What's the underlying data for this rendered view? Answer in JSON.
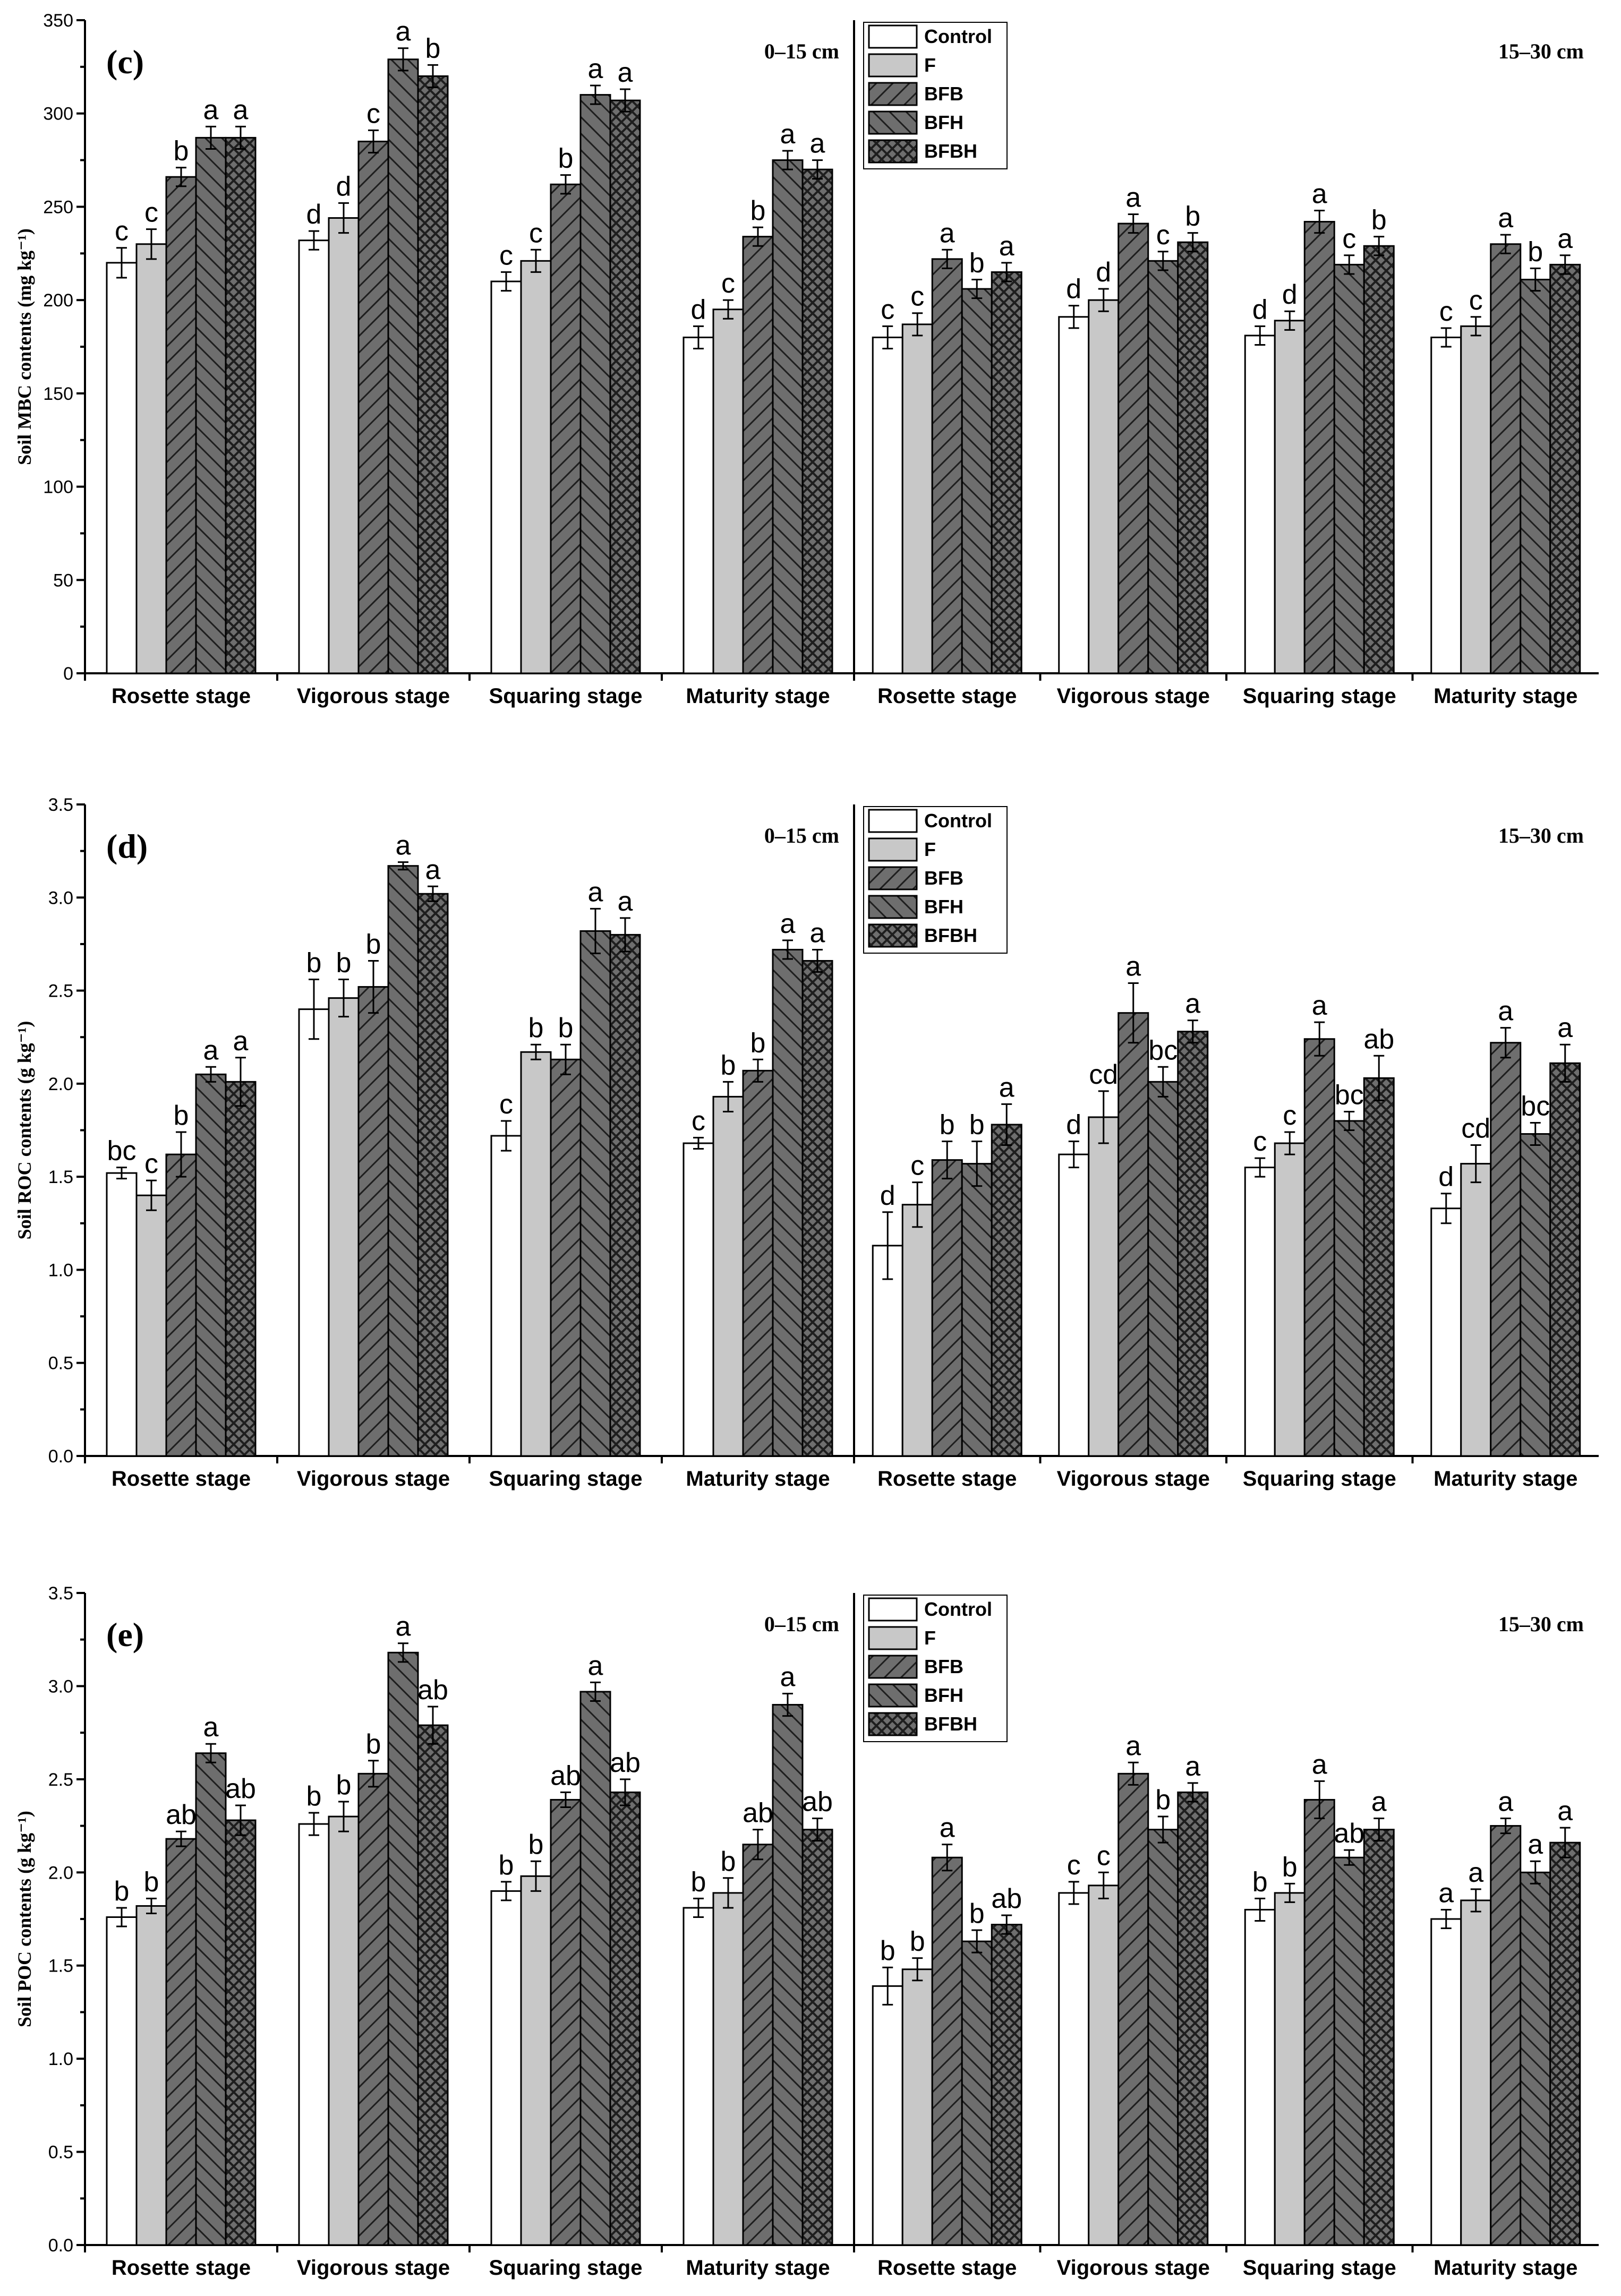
{
  "colors": {
    "control": "#ffffff",
    "f": "#c8c8c8",
    "hatched_bg": "#6e6e6e",
    "hatch_line": "#1e1e1e",
    "axis": "#000000"
  },
  "chart_data": [
    {
      "type": "bar",
      "panel_label": "(c)",
      "ylabel": "Soil MBC contents (mg kg⁻¹)",
      "ylim": [
        0,
        350
      ],
      "yticks": [
        0,
        50,
        100,
        150,
        200,
        250,
        300,
        350
      ],
      "ytick_labels": [
        "0",
        "50",
        "100",
        "150",
        "200",
        "250",
        "300",
        "350"
      ],
      "legend": [
        "Control",
        "F",
        "BFB",
        "BFH",
        "BFBH"
      ],
      "legend_position": "top-center",
      "depths": [
        {
          "label": "0–15 cm",
          "categories": [
            "Rosette stage",
            "Vigorous stage",
            "Squaring stage",
            "Maturity stage"
          ],
          "series": [
            {
              "name": "Control",
              "values": [
                220,
                232,
                210,
                180
              ],
              "errors": [
                8,
                5,
                5,
                6
              ],
              "letters": [
                "c",
                "d",
                "c",
                "d"
              ]
            },
            {
              "name": "F",
              "values": [
                230,
                244,
                221,
                195
              ],
              "errors": [
                8,
                8,
                6,
                5
              ],
              "letters": [
                "c",
                "d",
                "c",
                "c"
              ]
            },
            {
              "name": "BFB",
              "values": [
                266,
                285,
                262,
                234
              ],
              "errors": [
                5,
                6,
                5,
                5
              ],
              "letters": [
                "b",
                "c",
                "b",
                "b"
              ]
            },
            {
              "name": "BFH",
              "values": [
                287,
                329,
                310,
                275
              ],
              "errors": [
                6,
                6,
                5,
                5
              ],
              "letters": [
                "a",
                "a",
                "a",
                "a"
              ]
            },
            {
              "name": "BFBH",
              "values": [
                287,
                320,
                307,
                270
              ],
              "errors": [
                6,
                6,
                6,
                5
              ],
              "letters": [
                "a",
                "b",
                "a",
                "a"
              ]
            }
          ]
        },
        {
          "label": "15–30 cm",
          "categories": [
            "Rosette stage",
            "Vigorous stage",
            "Squaring stage",
            "Maturity stage"
          ],
          "series": [
            {
              "name": "Control",
              "values": [
                180,
                191,
                181,
                180
              ],
              "errors": [
                6,
                6,
                5,
                5
              ],
              "letters": [
                "c",
                "d",
                "d",
                "c"
              ]
            },
            {
              "name": "F",
              "values": [
                187,
                200,
                189,
                186
              ],
              "errors": [
                6,
                6,
                5,
                5
              ],
              "letters": [
                "c",
                "d",
                "d",
                "c"
              ]
            },
            {
              "name": "BFB",
              "values": [
                222,
                241,
                242,
                230
              ],
              "errors": [
                5,
                5,
                6,
                5
              ],
              "letters": [
                "a",
                "a",
                "a",
                "a"
              ]
            },
            {
              "name": "BFH",
              "values": [
                206,
                221,
                219,
                211
              ],
              "errors": [
                5,
                5,
                5,
                6
              ],
              "letters": [
                "b",
                "c",
                "c",
                "b"
              ]
            },
            {
              "name": "BFBH",
              "values": [
                215,
                231,
                229,
                219
              ],
              "errors": [
                5,
                5,
                5,
                5
              ],
              "letters": [
                "a",
                "b",
                "b",
                "a"
              ]
            }
          ]
        }
      ]
    },
    {
      "type": "bar",
      "panel_label": "(d)",
      "ylabel": "Soil ROC contents (g kg⁻¹)",
      "ylim": [
        0,
        3.5
      ],
      "yticks": [
        0,
        0.5,
        1.0,
        1.5,
        2.0,
        2.5,
        3.0,
        3.5
      ],
      "ytick_labels": [
        "0.0",
        "0.5",
        "1.0",
        "1.5",
        "2.0",
        "2.5",
        "3.0",
        "3.5"
      ],
      "legend": [
        "Control",
        "F",
        "BFB",
        "BFH",
        "BFBH"
      ],
      "legend_position": "top-center",
      "depths": [
        {
          "label": "0–15 cm",
          "categories": [
            "Rosette stage",
            "Vigorous stage",
            "Squaring stage",
            "Maturity stage"
          ],
          "series": [
            {
              "name": "Control",
              "values": [
                1.52,
                2.4,
                1.72,
                1.68
              ],
              "errors": [
                0.03,
                0.16,
                0.08,
                0.03
              ],
              "letters": [
                "bc",
                "b",
                "c",
                "c"
              ]
            },
            {
              "name": "F",
              "values": [
                1.4,
                2.46,
                2.17,
                1.93
              ],
              "errors": [
                0.08,
                0.1,
                0.04,
                0.08
              ],
              "letters": [
                "c",
                "b",
                "b",
                "b"
              ]
            },
            {
              "name": "BFB",
              "values": [
                1.62,
                2.52,
                2.13,
                2.07
              ],
              "errors": [
                0.12,
                0.14,
                0.08,
                0.06
              ],
              "letters": [
                "b",
                "b",
                "b",
                "b"
              ]
            },
            {
              "name": "BFH",
              "values": [
                2.05,
                3.17,
                2.82,
                2.72
              ],
              "errors": [
                0.04,
                0.02,
                0.12,
                0.05
              ],
              "letters": [
                "a",
                "a",
                "a",
                "a"
              ]
            },
            {
              "name": "BFBH",
              "values": [
                2.01,
                3.02,
                2.8,
                2.66
              ],
              "errors": [
                0.13,
                0.04,
                0.09,
                0.06
              ],
              "letters": [
                "a",
                "a",
                "a",
                "a"
              ]
            }
          ]
        },
        {
          "label": "15–30 cm",
          "categories": [
            "Rosette stage",
            "Vigorous stage",
            "Squaring stage",
            "Maturity stage"
          ],
          "series": [
            {
              "name": "Control",
              "values": [
                1.13,
                1.62,
                1.55,
                1.33
              ],
              "errors": [
                0.18,
                0.07,
                0.05,
                0.08
              ],
              "letters": [
                "d",
                "d",
                "c",
                "d"
              ]
            },
            {
              "name": "F",
              "values": [
                1.35,
                1.82,
                1.68,
                1.57
              ],
              "errors": [
                0.12,
                0.14,
                0.06,
                0.1
              ],
              "letters": [
                "c",
                "cd",
                "c",
                "cd"
              ]
            },
            {
              "name": "BFB",
              "values": [
                1.59,
                2.38,
                2.24,
                2.22
              ],
              "errors": [
                0.1,
                0.16,
                0.09,
                0.08
              ],
              "letters": [
                "b",
                "a",
                "a",
                "a"
              ]
            },
            {
              "name": "BFH",
              "values": [
                1.57,
                2.01,
                1.8,
                1.73
              ],
              "errors": [
                0.12,
                0.08,
                0.05,
                0.06
              ],
              "letters": [
                "b",
                "bc",
                "bc",
                "bc"
              ]
            },
            {
              "name": "BFBH",
              "values": [
                1.78,
                2.28,
                2.03,
                2.11
              ],
              "errors": [
                0.11,
                0.06,
                0.12,
                0.1
              ],
              "letters": [
                "a",
                "a",
                "ab",
                "a"
              ]
            }
          ]
        }
      ]
    },
    {
      "type": "bar",
      "panel_label": "(e)",
      "ylabel": "Soil POC contents (g kg⁻¹)",
      "ylim": [
        0,
        3.5
      ],
      "yticks": [
        0,
        0.5,
        1.0,
        1.5,
        2.0,
        2.5,
        3.0,
        3.5
      ],
      "ytick_labels": [
        "0.0",
        "0.5",
        "1.0",
        "1.5",
        "2.0",
        "2.5",
        "3.0",
        "3.5"
      ],
      "legend": [
        "Control",
        "F",
        "BFB",
        "BFH",
        "BFBH"
      ],
      "legend_position": "top-center",
      "depths": [
        {
          "label": "0–15 cm",
          "categories": [
            "Rosette stage",
            "Vigorous stage",
            "Squaring stage",
            "Maturity stage"
          ],
          "series": [
            {
              "name": "Control",
              "values": [
                1.76,
                2.26,
                1.9,
                1.81
              ],
              "errors": [
                0.05,
                0.06,
                0.05,
                0.05
              ],
              "letters": [
                "b",
                "b",
                "b",
                "b"
              ]
            },
            {
              "name": "F",
              "values": [
                1.82,
                2.3,
                1.98,
                1.89
              ],
              "errors": [
                0.04,
                0.08,
                0.08,
                0.08
              ],
              "letters": [
                "b",
                "b",
                "b",
                "b"
              ]
            },
            {
              "name": "BFB",
              "values": [
                2.18,
                2.53,
                2.39,
                2.15
              ],
              "errors": [
                0.04,
                0.07,
                0.04,
                0.08
              ],
              "letters": [
                "ab",
                "b",
                "ab",
                "ab"
              ]
            },
            {
              "name": "BFH",
              "values": [
                2.64,
                3.18,
                2.97,
                2.9
              ],
              "errors": [
                0.05,
                0.05,
                0.05,
                0.06
              ],
              "letters": [
                "a",
                "a",
                "a",
                "a"
              ]
            },
            {
              "name": "BFBH",
              "values": [
                2.28,
                2.79,
                2.43,
                2.23
              ],
              "errors": [
                0.08,
                0.1,
                0.07,
                0.06
              ],
              "letters": [
                "ab",
                "ab",
                "ab",
                "ab"
              ]
            }
          ]
        },
        {
          "label": "15–30 cm",
          "categories": [
            "Rosette stage",
            "Vigorous stage",
            "Squaring stage",
            "Maturity stage"
          ],
          "series": [
            {
              "name": "Control",
              "values": [
                1.39,
                1.89,
                1.8,
                1.75
              ],
              "errors": [
                0.1,
                0.06,
                0.06,
                0.05
              ],
              "letters": [
                "b",
                "c",
                "b",
                "a"
              ]
            },
            {
              "name": "F",
              "values": [
                1.48,
                1.93,
                1.89,
                1.85
              ],
              "errors": [
                0.06,
                0.07,
                0.05,
                0.06
              ],
              "letters": [
                "b",
                "c",
                "b",
                "a"
              ]
            },
            {
              "name": "BFB",
              "values": [
                2.08,
                2.53,
                2.39,
                2.25
              ],
              "errors": [
                0.07,
                0.06,
                0.1,
                0.04
              ],
              "letters": [
                "a",
                "a",
                "a",
                "a"
              ]
            },
            {
              "name": "BFH",
              "values": [
                1.63,
                2.23,
                2.08,
                2.0
              ],
              "errors": [
                0.06,
                0.07,
                0.04,
                0.06
              ],
              "letters": [
                "b",
                "b",
                "ab",
                "a"
              ]
            },
            {
              "name": "BFBH",
              "values": [
                1.72,
                2.43,
                2.23,
                2.16
              ],
              "errors": [
                0.05,
                0.05,
                0.06,
                0.08
              ],
              "letters": [
                "ab",
                "a",
                "a",
                "a"
              ]
            }
          ]
        }
      ]
    }
  ]
}
